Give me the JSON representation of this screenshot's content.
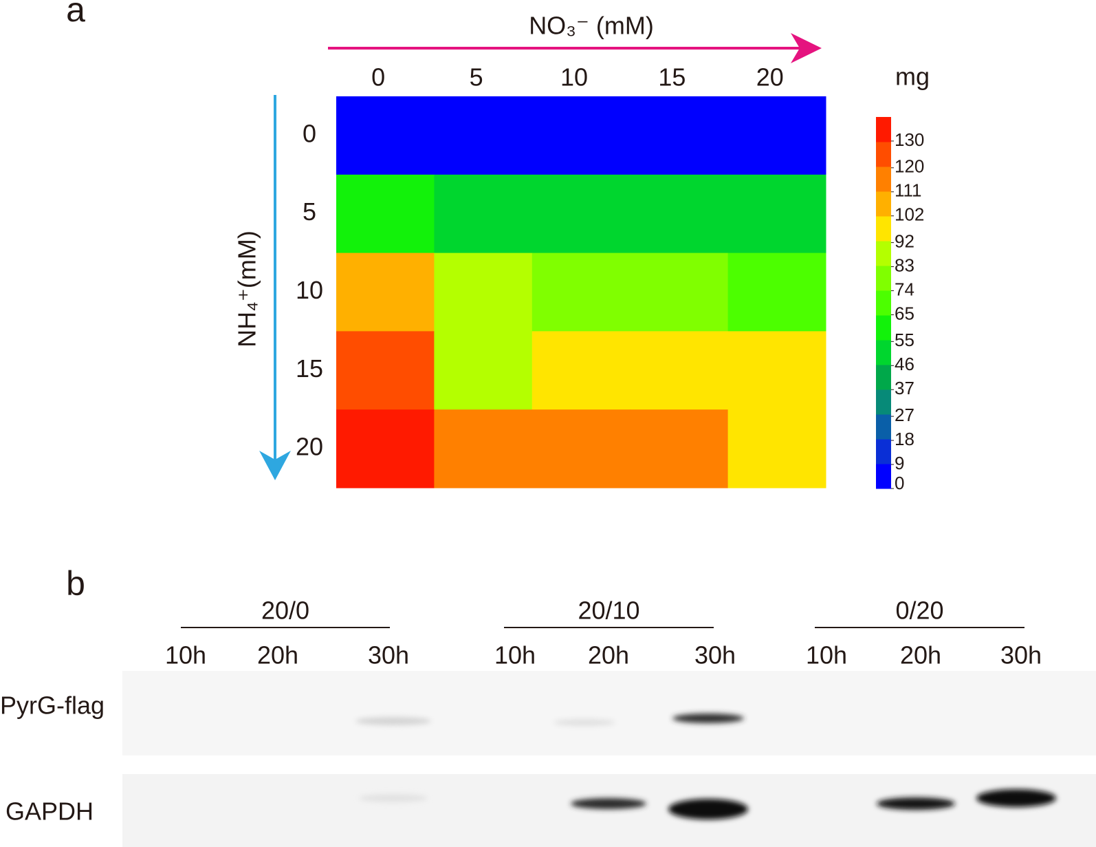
{
  "chart_data": {
    "type": "heatmap",
    "panel_label": "a",
    "x_label": "NO₃⁻ (mM)",
    "y_label": "NH₄⁺(mM)",
    "x": [
      0,
      5,
      10,
      15,
      20
    ],
    "y": [
      0,
      5,
      10,
      15,
      20
    ],
    "z": [
      [
        0,
        0,
        0,
        0,
        0
      ],
      [
        60,
        50,
        50,
        50,
        50
      ],
      [
        106,
        88,
        78,
        78,
        68
      ],
      [
        125,
        88,
        97,
        97,
        97
      ],
      [
        135,
        115,
        115,
        115,
        97
      ]
    ],
    "colorbar": {
      "label": "mg",
      "lim": [
        0,
        139
      ],
      "ticks": [
        0,
        9,
        18,
        27,
        37,
        46,
        55,
        65,
        74,
        83,
        92,
        102,
        111,
        120,
        130
      ],
      "colors": [
        "#0000ff",
        "#0a2fd6",
        "#0a5fa8",
        "#078a78",
        "#00a84a",
        "#00d62e",
        "#12f20a",
        "#4cff00",
        "#80ff00",
        "#b4ff00",
        "#ffe500",
        "#ffb000",
        "#ff8000",
        "#ff4d00",
        "#ff1a00"
      ]
    },
    "x_arrow_color": "#e5137f",
    "y_arrow_color": "#2ea7e0"
  },
  "blot": {
    "panel_label": "b",
    "groups": [
      "20/0",
      "20/10",
      "0/20"
    ],
    "times": [
      "10h",
      "20h",
      "30h",
      "10h",
      "20h",
      "30h",
      "10h",
      "20h",
      "30h"
    ],
    "rows": [
      "PyrG-flag",
      "GAPDH"
    ]
  }
}
